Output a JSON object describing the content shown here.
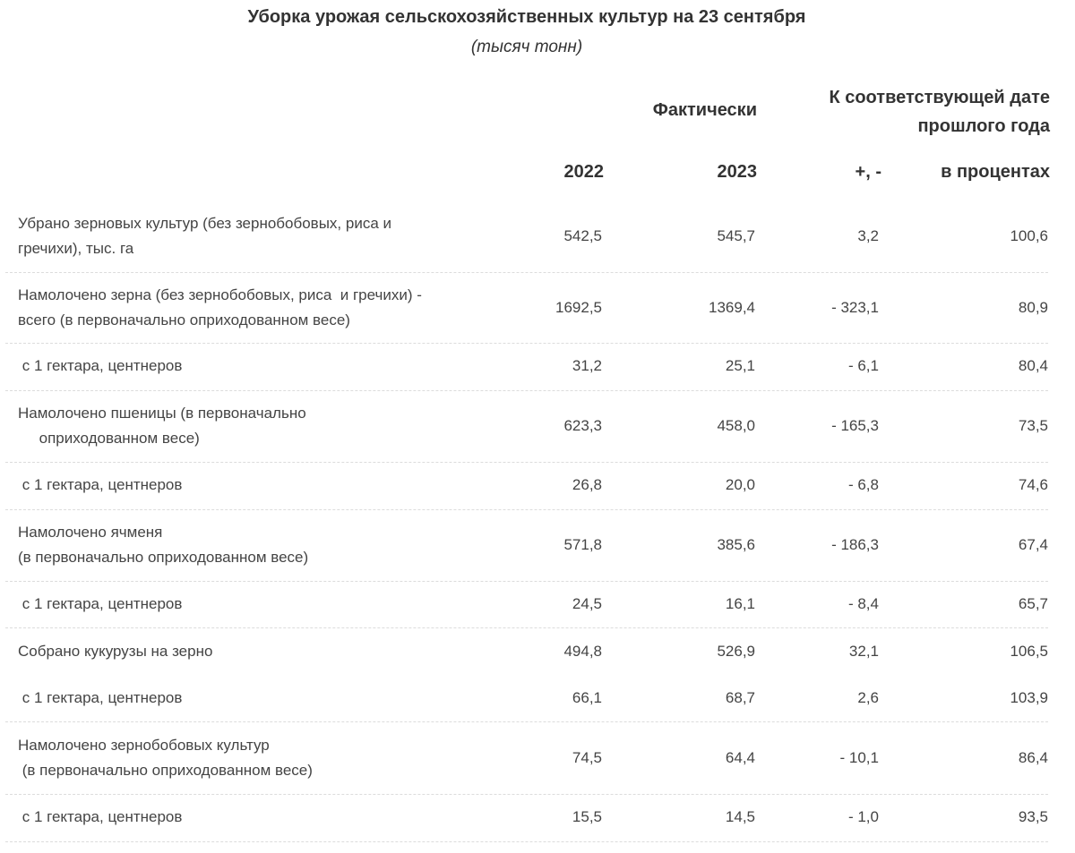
{
  "title": "Уборка урожая сельскохозяйственных культур на 23 сентября",
  "subtitle": "(тысяч тонн)",
  "headers": {
    "fact": "Фактически",
    "prev": [
      "К соответствующей дате",
      "прошлого года"
    ],
    "y2022": "2022",
    "y2023": "2023",
    "plusminus": "+, -",
    "percent": "в процентах"
  },
  "rows": [
    {
      "label": [
        "Убрано зерновых культур (без зернобобовых, риса и",
        "гречихи), тыс. га"
      ],
      "v2022": "542,5",
      "v2023": "545,7",
      "diff": "3,2",
      "pct": "100,6"
    },
    {
      "label": [
        "Намолочено зерна (без зернобобовых, риса  и гречихи) -",
        "всего (в первоначально оприходованном весе)"
      ],
      "v2022": "1692,5",
      "v2023": "1369,4",
      "diff": "- 323,1",
      "pct": "80,9"
    },
    {
      "label": [
        " с 1 гектара, центнеров"
      ],
      "v2022": "31,2",
      "v2023": "25,1",
      "diff": "- 6,1",
      "pct": "80,4"
    },
    {
      "label": [
        "Намолочено пшеницы (в первоначально",
        "     оприходованном весе)"
      ],
      "v2022": "623,3",
      "v2023": "458,0",
      "diff": "- 165,3",
      "pct": "73,5"
    },
    {
      "label": [
        " с 1 гектара, центнеров"
      ],
      "v2022": "26,8",
      "v2023": "20,0",
      "diff": "- 6,8",
      "pct": "74,6"
    },
    {
      "label": [
        "Намолочено ячменя",
        "(в первоначально оприходованном весе)"
      ],
      "v2022": "571,8",
      "v2023": "385,6",
      "diff": "- 186,3",
      "pct": "67,4"
    },
    {
      "label": [
        " с 1 гектара, центнеров"
      ],
      "v2022": "24,5",
      "v2023": "16,1",
      "diff": "- 8,4",
      "pct": "65,7"
    },
    {
      "label": [
        "Собрано кукурузы на зерно"
      ],
      "v2022": "494,8",
      "v2023": "526,9",
      "diff": "32,1",
      "pct": "106,5"
    },
    {
      "label": [
        " с 1 гектара, центнеров"
      ],
      "v2022": "66,1",
      "v2023": "68,7",
      "diff": "2,6",
      "pct": "103,9"
    },
    {
      "label": [
        "Намолочено зернобобовых культур",
        " (в первоначально оприходованном весе)"
      ],
      "v2022": "74,5",
      "v2023": "64,4",
      "diff": "- 10,1",
      "pct": "86,4"
    },
    {
      "label": [
        " с 1 гектара, центнеров"
      ],
      "v2022": "15,5",
      "v2023": "14,5",
      "diff": "- 1,0",
      "pct": "93,5"
    }
  ]
}
